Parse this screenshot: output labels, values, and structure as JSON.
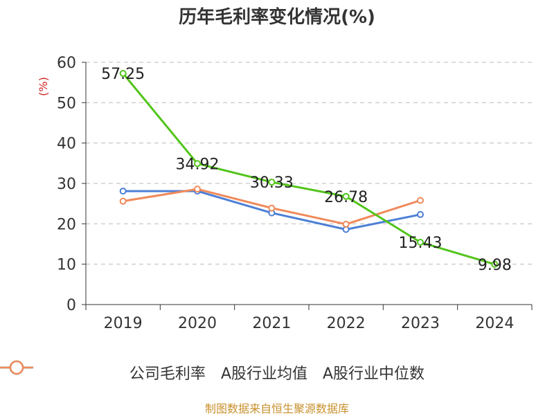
{
  "chart_data": {
    "type": "line",
    "title": "历年毛利率变化情况(%)",
    "ylabel": "(%)",
    "xlabel": "",
    "categories": [
      "2019",
      "2020",
      "2021",
      "2022",
      "2023",
      "2024"
    ],
    "ylim": [
      0,
      60
    ],
    "yticks": [
      0,
      10,
      20,
      30,
      40,
      50,
      60
    ],
    "grid": true,
    "legend_position": "bottom",
    "series": [
      {
        "name": "公司毛利率",
        "color": "#52c41a",
        "values": [
          57.25,
          34.92,
          30.33,
          26.78,
          15.43,
          9.98
        ],
        "labels": [
          "57.25",
          "34.92",
          "30.33",
          "26.78",
          "15.43",
          "9.98"
        ]
      },
      {
        "name": "A股行业均值",
        "color": "#4d7fd6",
        "values": [
          28.1,
          28.1,
          22.7,
          18.6,
          22.3,
          null
        ]
      },
      {
        "name": "A股行业中位数",
        "color": "#f0895a",
        "values": [
          25.6,
          28.6,
          23.9,
          19.9,
          25.8,
          null
        ]
      }
    ]
  },
  "source_note": "制图数据来自恒生聚源数据库",
  "colors": {
    "axis": "#333333",
    "grid": "#bbbbbb",
    "ylabel": "#d22222",
    "source": "#c8902c"
  }
}
